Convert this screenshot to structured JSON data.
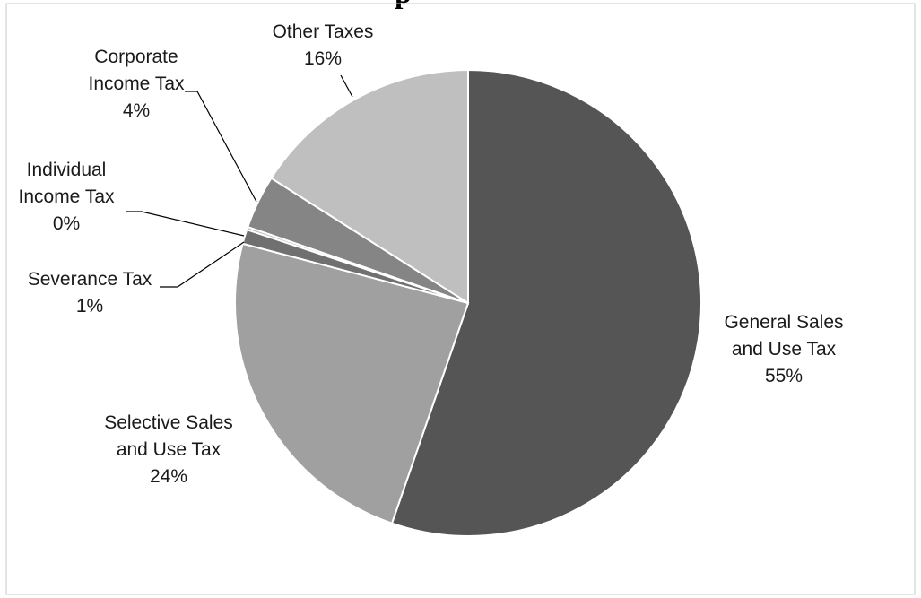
{
  "chart_data": {
    "type": "pie",
    "title_fragment": "p",
    "slices": [
      {
        "name": "General Sales and Use Tax",
        "label_lines": [
          "General Sales",
          "and Use Tax"
        ],
        "pct_label": "55%",
        "value": 55.3,
        "color": "#555555"
      },
      {
        "name": "Selective Sales and Use Tax",
        "label_lines": [
          "Selective Sales",
          "and Use Tax"
        ],
        "pct_label": "24%",
        "value": 23.8,
        "color": "#a0a0a0"
      },
      {
        "name": "Severance Tax",
        "label_lines": [
          "Severance Tax"
        ],
        "pct_label": "1%",
        "value": 1.0,
        "color": "#707070"
      },
      {
        "name": "Individual Income Tax",
        "label_lines": [
          "Individual",
          "Income Tax"
        ],
        "pct_label": "0%",
        "value": 0.2,
        "color": "#bdbdbd"
      },
      {
        "name": "Corporate Income Tax",
        "label_lines": [
          "Corporate",
          "Income Tax"
        ],
        "pct_label": "4%",
        "value": 3.7,
        "color": "#858585"
      },
      {
        "name": "Other Taxes",
        "label_lines": [
          "Other Taxes"
        ],
        "pct_label": "16%",
        "value": 16.0,
        "color": "#bfbfbf"
      }
    ]
  }
}
